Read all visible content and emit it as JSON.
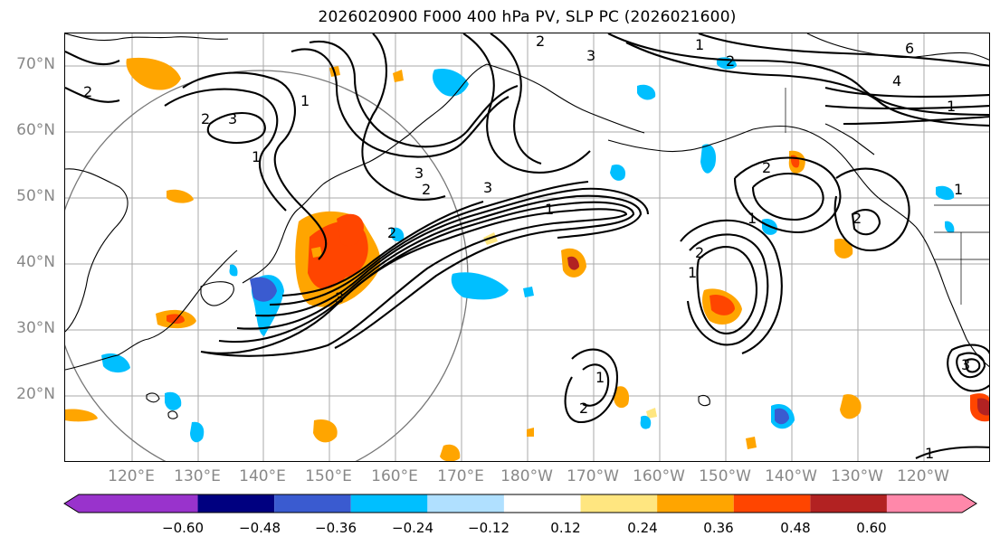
{
  "title": "2026020900 F000 400 hPa PV, SLP PC (2026021600)",
  "lat_labels": [
    "70°N",
    "60°N",
    "50°N",
    "40°N",
    "30°N",
    "20°N"
  ],
  "lon_labels": [
    "120°E",
    "130°E",
    "140°E",
    "150°E",
    "160°E",
    "170°E",
    "180°W",
    "170°W",
    "160°W",
    "150°W",
    "140°W",
    "130°W",
    "120°W"
  ],
  "colorbar": {
    "ticks": [
      "−0.60",
      "−0.48",
      "−0.36",
      "−0.24",
      "−0.12",
      "0.12",
      "0.24",
      "0.36",
      "0.48",
      "0.60"
    ],
    "colors": [
      "#9933cc",
      "#000080",
      "#3a5bd0",
      "#00bfff",
      "#b0e0ff",
      "#ffffff",
      "#ffe680",
      "#ffa500",
      "#ff4500",
      "#b22222",
      "#ff88aa"
    ]
  },
  "contour_labels": [
    "1",
    "2",
    "3",
    "3",
    "1",
    "2",
    "3",
    "3",
    "2",
    "3",
    "2",
    "1",
    "2",
    "6",
    "4",
    "2",
    "1",
    "2",
    "2",
    "1",
    "1",
    "2",
    "1",
    "2",
    "1",
    "3",
    "1",
    "1"
  ]
}
